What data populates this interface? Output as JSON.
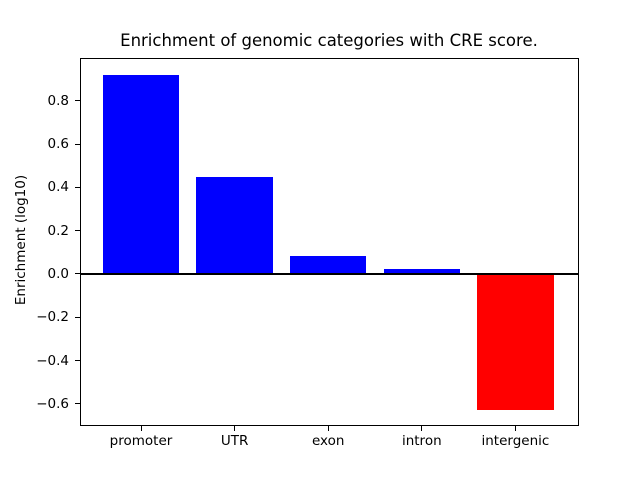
{
  "chart_data": {
    "type": "bar",
    "title": "Enrichment of genomic categories with CRE score.",
    "xlabel": "",
    "ylabel": "Enrichment (log10)",
    "categories": [
      "promoter",
      "UTR",
      "exon",
      "intron",
      "intergenic"
    ],
    "values": [
      0.92,
      0.45,
      0.085,
      0.025,
      -0.63
    ],
    "bar_colors": [
      "#0000ff",
      "#0000ff",
      "#0000ff",
      "#0000ff",
      "#ff0000"
    ],
    "positive_color": "#0000ff",
    "negative_color": "#ff0000",
    "ylim": [
      -0.7,
      1.0
    ],
    "yticks": [
      0.8,
      0.6,
      0.4,
      0.2,
      0.0,
      -0.2,
      -0.4,
      -0.6
    ],
    "ytick_labels": [
      "0.8",
      "0.6",
      "0.4",
      "0.2",
      "0.0",
      "−0.2",
      "−0.4",
      "−0.6"
    ],
    "grid": false,
    "legend": false,
    "zero_line": true,
    "text_color": "#000000",
    "background_color": "#ffffff"
  }
}
